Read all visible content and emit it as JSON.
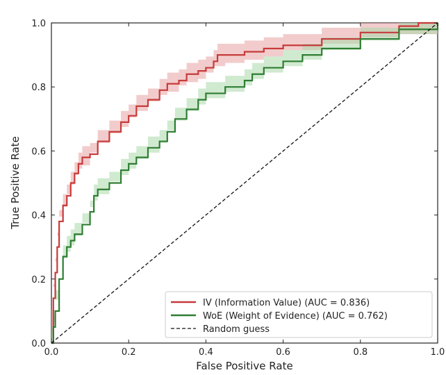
{
  "chart_data": {
    "type": "line",
    "xlabel": "False Positive Rate",
    "ylabel": "True Positive Rate",
    "xlim": [
      0,
      1
    ],
    "ylim": [
      0,
      1
    ],
    "xticks": [
      "0.0",
      "0.2",
      "0.4",
      "0.6",
      "0.8",
      "1.0"
    ],
    "yticks": [
      "0.0",
      "0.2",
      "0.4",
      "0.6",
      "0.8",
      "1.0"
    ],
    "grid": false,
    "legend_position": "bottom-right",
    "series": [
      {
        "name": "IV (Information Value) (AUC = 0.836)",
        "color": "#c73a3a",
        "band_color": "#e8a3a3",
        "band_width": 0.035,
        "x": [
          0.0,
          0.005,
          0.01,
          0.015,
          0.02,
          0.03,
          0.04,
          0.05,
          0.06,
          0.07,
          0.08,
          0.1,
          0.12,
          0.15,
          0.18,
          0.2,
          0.22,
          0.25,
          0.28,
          0.3,
          0.33,
          0.35,
          0.38,
          0.4,
          0.42,
          0.43,
          0.45,
          0.5,
          0.55,
          0.6,
          0.7,
          0.8,
          0.9,
          0.95,
          1.0
        ],
        "y": [
          0.0,
          0.14,
          0.22,
          0.3,
          0.38,
          0.43,
          0.46,
          0.5,
          0.53,
          0.56,
          0.58,
          0.59,
          0.63,
          0.66,
          0.69,
          0.71,
          0.74,
          0.76,
          0.79,
          0.81,
          0.82,
          0.84,
          0.85,
          0.86,
          0.88,
          0.9,
          0.9,
          0.91,
          0.92,
          0.93,
          0.95,
          0.97,
          0.99,
          1.0,
          1.0
        ]
      },
      {
        "name": "WoE (Weight of Evidence) (AUC = 0.762)",
        "color": "#2e7d32",
        "band_color": "#a9d8a9",
        "band_width": 0.035,
        "x": [
          0.0,
          0.005,
          0.01,
          0.02,
          0.03,
          0.04,
          0.05,
          0.06,
          0.08,
          0.1,
          0.11,
          0.12,
          0.15,
          0.18,
          0.2,
          0.22,
          0.25,
          0.28,
          0.3,
          0.32,
          0.35,
          0.38,
          0.4,
          0.45,
          0.5,
          0.52,
          0.55,
          0.6,
          0.65,
          0.7,
          0.8,
          0.9,
          1.0
        ],
        "y": [
          0.0,
          0.05,
          0.1,
          0.2,
          0.27,
          0.3,
          0.32,
          0.34,
          0.37,
          0.41,
          0.46,
          0.48,
          0.5,
          0.54,
          0.56,
          0.58,
          0.61,
          0.63,
          0.66,
          0.7,
          0.73,
          0.76,
          0.78,
          0.8,
          0.82,
          0.84,
          0.86,
          0.88,
          0.9,
          0.92,
          0.95,
          0.98,
          1.0
        ]
      },
      {
        "name": "Random guess",
        "color": "#111111",
        "dashed": true,
        "x": [
          0,
          1
        ],
        "y": [
          0,
          1
        ]
      }
    ]
  }
}
